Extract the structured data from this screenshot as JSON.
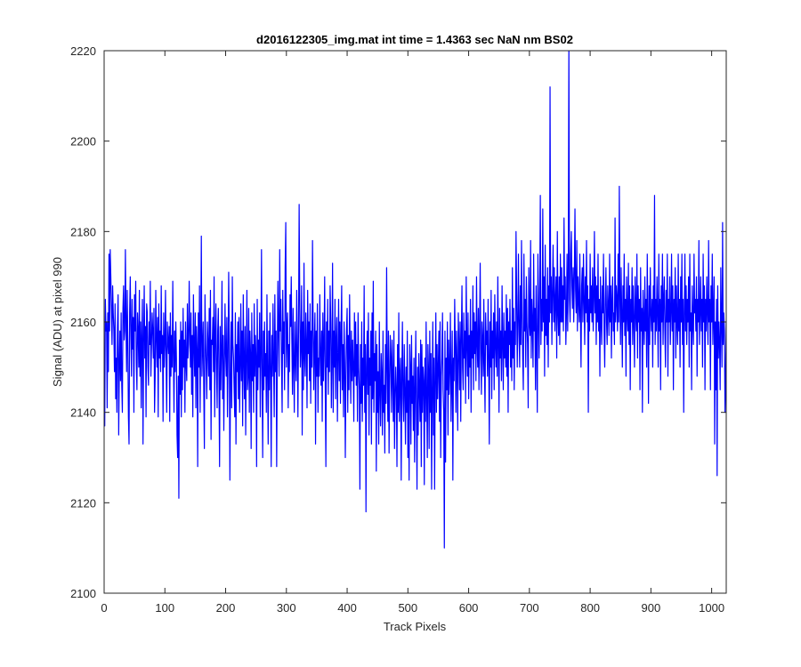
{
  "colors": {
    "series": "#0000ff",
    "axes": "#262626",
    "background": "#ffffff"
  },
  "chart_data": {
    "type": "line",
    "title": "d2016122305_img.mat int time = 1.4363 sec  NaN nm BS02",
    "xlabel": "Track Pixels",
    "ylabel": "Signal (ADU) at pixel 990",
    "xlim": [
      0,
      1024
    ],
    "ylim": [
      2100,
      2220
    ],
    "xticks": [
      0,
      100,
      200,
      300,
      400,
      500,
      600,
      700,
      800,
      900,
      1000
    ],
    "yticks": [
      2100,
      2120,
      2140,
      2160,
      2180,
      2200,
      2220
    ],
    "grid": false,
    "legend": "none",
    "series": [
      {
        "x_start": 0,
        "x_step": 1,
        "color": "#0000ff",
        "values": [
          2150,
          2137,
          2165,
          2158,
          2160,
          2141,
          2162,
          2149,
          2175,
          2158,
          2176,
          2170,
          2163,
          2155,
          2168,
          2162,
          2158,
          2149,
          2164,
          2143,
          2152,
          2140,
          2159,
          2166,
          2135,
          2150,
          2158,
          2147,
          2162,
          2146,
          2140,
          2163,
          2168,
          2156,
          2158,
          2176,
          2160,
          2149,
          2167,
          2156,
          2139,
          2133,
          2162,
          2170,
          2158,
          2148,
          2165,
          2154,
          2161,
          2140,
          2166,
          2158,
          2169,
          2151,
          2145,
          2162,
          2158,
          2150,
          2167,
          2148,
          2160,
          2141,
          2157,
          2165,
          2133,
          2156,
          2168,
          2152,
          2159,
          2139,
          2164,
          2162,
          2150,
          2146,
          2160,
          2155,
          2169,
          2148,
          2155,
          2162,
          2158,
          2152,
          2163,
          2140,
          2148,
          2167,
          2157,
          2150,
          2161,
          2139,
          2164,
          2152,
          2158,
          2149,
          2168,
          2153,
          2157,
          2138,
          2162,
          2150,
          2155,
          2167,
          2152,
          2140,
          2160,
          2156,
          2153,
          2159,
          2138,
          2162,
          2148,
          2157,
          2150,
          2169,
          2153,
          2140,
          2158,
          2149,
          2160,
          2152,
          2135,
          2130,
          2148,
          2121,
          2156,
          2144,
          2160,
          2139,
          2158,
          2145,
          2163,
          2150,
          2156,
          2140,
          2160,
          2151,
          2147,
          2164,
          2152,
          2155,
          2169,
          2158,
          2150,
          2162,
          2144,
          2157,
          2139,
          2166,
          2155,
          2148,
          2162,
          2141,
          2159,
          2154,
          2128,
          2162,
          2150,
          2168,
          2140,
          2156,
          2179,
          2148,
          2154,
          2160,
          2145,
          2132,
          2166,
          2156,
          2150,
          2143,
          2160,
          2155,
          2148,
          2163,
          2145,
          2167,
          2134,
          2156,
          2155,
          2161,
          2149,
          2170,
          2139,
          2157,
          2164,
          2150,
          2141,
          2158,
          2163,
          2147,
          2128,
          2159,
          2145,
          2154,
          2169,
          2143,
          2157,
          2136,
          2150,
          2164,
          2153,
          2148,
          2161,
          2139,
          2152,
          2171,
          2156,
          2125,
          2148,
          2160,
          2141,
          2170,
          2155,
          2152,
          2145,
          2139,
          2162,
          2133,
          2155,
          2149,
          2160,
          2143,
          2161,
          2140,
          2150,
          2164,
          2147,
          2158,
          2137,
          2166,
          2152,
          2143,
          2159,
          2135,
          2152,
          2167,
          2145,
          2148,
          2163,
          2140,
          2158,
          2153,
          2132,
          2162,
          2147,
          2155,
          2140,
          2164,
          2148,
          2157,
          2152,
          2128,
          2165,
          2145,
          2156,
          2150,
          2162,
          2139,
          2152,
          2176,
          2148,
          2130,
          2158,
          2145,
          2160,
          2148,
          2153,
          2140,
          2166,
          2149,
          2133,
          2158,
          2145,
          2162,
          2150,
          2128,
          2157,
          2148,
          2164,
          2150,
          2139,
          2166,
          2149,
          2158,
          2128,
          2152,
          2169,
          2158,
          2148,
          2176,
          2158,
          2165,
          2151,
          2140,
          2167,
          2153,
          2160,
          2145,
          2172,
          2182,
          2150,
          2158,
          2162,
          2141,
          2155,
          2149,
          2166,
          2159,
          2170,
          2156,
          2144,
          2163,
          2151,
          2140,
          2160,
          2152,
          2147,
          2167,
          2155,
          2139,
          2158,
          2186,
          2165,
          2150,
          2155,
          2168,
          2135,
          2160,
          2145,
          2173,
          2152,
          2148,
          2162,
          2155,
          2141,
          2167,
          2153,
          2160,
          2147,
          2164,
          2142,
          2158,
          2150,
          2178,
          2160,
          2145,
          2155,
          2162,
          2133,
          2158,
          2148,
          2164,
          2140,
          2152,
          2148,
          2166,
          2153,
          2146,
          2158,
          2138,
          2162,
          2147,
          2155,
          2170,
          2145,
          2128,
          2160,
          2150,
          2165,
          2144,
          2158,
          2149,
          2168,
          2160,
          2141,
          2152,
          2173,
          2140,
          2158,
          2150,
          2165,
          2143,
          2156,
          2161,
          2138,
          2152,
          2165,
          2147,
          2160,
          2142,
          2158,
          2168,
          2145,
          2155,
          2139,
          2160,
          2151,
          2130,
          2148,
          2158,
          2163,
          2140,
          2157,
          2145,
          2166,
          2153,
          2142,
          2158,
          2147,
          2156,
          2150,
          2138,
          2162,
          2148,
          2160,
          2146,
          2155,
          2138,
          2162,
          2150,
          2145,
          2123,
          2155,
          2142,
          2160,
          2138,
          2152,
          2146,
          2168,
          2140,
          2155,
          2118,
          2150,
          2158,
          2144,
          2162,
          2135,
          2152,
          2146,
          2158,
          2133,
          2162,
          2143,
          2169,
          2140,
          2153,
          2147,
          2158,
          2127,
          2155,
          2140,
          2149,
          2133,
          2160,
          2145,
          2137,
          2153,
          2148,
          2135,
          2158,
          2140,
          2146,
          2131,
          2155,
          2142,
          2172,
          2150,
          2138,
          2158,
          2131,
          2147,
          2157,
          2152,
          2140,
          2156,
          2148,
          2138,
          2158,
          2132,
          2143,
          2150,
          2145,
          2128,
          2155,
          2140,
          2162,
          2138,
          2148,
          2152,
          2125,
          2147,
          2160,
          2143,
          2138,
          2155,
          2145,
          2133,
          2150,
          2140,
          2158,
          2130,
          2147,
          2125,
          2155,
          2150,
          2133,
          2157,
          2142,
          2148,
          2136,
          2152,
          2129,
          2145,
          2158,
          2140,
          2123,
          2150,
          2135,
          2153,
          2145,
          2138,
          2156,
          2128,
          2155,
          2140,
          2150,
          2147,
          2124,
          2152,
          2138,
          2160,
          2143,
          2130,
          2155,
          2149,
          2132,
          2158,
          2140,
          2153,
          2123,
          2145,
          2160,
          2135,
          2152,
          2123,
          2148,
          2162,
          2140,
          2155,
          2143,
          2150,
          2158,
          2138,
          2160,
          2130,
          2148,
          2152,
          2162,
          2145,
          2140,
          2110,
          2158,
          2129,
          2152,
          2145,
          2160,
          2135,
          2156,
          2144,
          2150,
          2162,
          2138,
          2148,
          2158,
          2125,
          2152,
          2147,
          2165,
          2155,
          2140,
          2158,
          2150,
          2136,
          2162,
          2155,
          2145,
          2160,
          2138,
          2157,
          2168,
          2150,
          2145,
          2162,
          2152,
          2158,
          2142,
          2170,
          2155,
          2148,
          2162,
          2143,
          2157,
          2150,
          2165,
          2140,
          2158,
          2152,
          2168,
          2145,
          2162,
          2153,
          2160,
          2147,
          2170,
          2155,
          2150,
          2163,
          2145,
          2158,
          2173,
          2152,
          2144,
          2160,
          2156,
          2148,
          2165,
          2150,
          2140,
          2162,
          2155,
          2158,
          2148,
          2165,
          2152,
          2133,
          2160,
          2150,
          2167,
          2143,
          2158,
          2152,
          2162,
          2145,
          2166,
          2155,
          2150,
          2160,
          2148,
          2170,
          2155,
          2140,
          2163,
          2152,
          2158,
          2147,
          2168,
          2155,
          2145,
          2162,
          2152,
          2158,
          2150,
          2166,
          2148,
          2163,
          2140,
          2160,
          2155,
          2165,
          2150,
          2158,
          2147,
          2172,
          2152,
          2163,
          2145,
          2160,
          2155,
          2180,
          2166,
          2150,
          2160,
          2175,
          2157,
          2150,
          2168,
          2155,
          2178,
          2162,
          2152,
          2145,
          2175,
          2158,
          2165,
          2150,
          2170,
          2160,
          2155,
          2141,
          2172,
          2160,
          2157,
          2178,
          2152,
          2165,
          2160,
          2150,
          2175,
          2158,
          2163,
          2145,
          2168,
          2155,
          2140,
          2175,
          2162,
          2152,
          2168,
          2188,
          2155,
          2165,
          2158,
          2185,
          2160,
          2170,
          2148,
          2177,
          2157,
          2165,
          2155,
          2172,
          2150,
          2168,
          2160,
          2212,
          2162,
          2170,
          2155,
          2167,
          2177,
          2160,
          2172,
          2158,
          2165,
          2170,
          2152,
          2180,
          2162,
          2157,
          2170,
          2155,
          2175,
          2160,
          2172,
          2160,
          2168,
          2158,
          2183,
          2165,
          2170,
          2155,
          2162,
          2175,
          2158,
          2170,
          2222,
          2165,
          2160,
          2175,
          2180,
          2168,
          2163,
          2172,
          2160,
          2170,
          2185,
          2167,
          2162,
          2178,
          2158,
          2170,
          2165,
          2160,
          2175,
          2162,
          2150,
          2168,
          2172,
          2160,
          2175,
          2165,
          2155,
          2170,
          2162,
          2178,
          2160,
          2168,
          2140,
          2165,
          2158,
          2175,
          2162,
          2168,
          2160,
          2172,
          2158,
          2165,
          2180,
          2162,
          2170,
          2155,
          2168,
          2160,
          2175,
          2158,
          2165,
          2148,
          2170,
          2160,
          2155,
          2168,
          2162,
          2175,
          2158,
          2150,
          2165,
          2172,
          2160,
          2155,
          2168,
          2163,
          2157,
          2175,
          2160,
          2168,
          2152,
          2165,
          2170,
          2158,
          2162,
          2155,
          2183,
          2160,
          2168,
          2165,
          2158,
          2175,
          2160,
          2190,
          2165,
          2155,
          2172,
          2162,
          2150,
          2168,
          2160,
          2175,
          2157,
          2165,
          2148,
          2170,
          2162,
          2158,
          2173,
          2155,
          2168,
          2145,
          2165,
          2160,
          2172,
          2155,
          2168,
          2160,
          2150,
          2170,
          2162,
          2158,
          2175,
          2152,
          2168,
          2160,
          2165,
          2145,
          2172,
          2158,
          2163,
          2140,
          2167,
          2160,
          2155,
          2170,
          2158,
          2165,
          2150,
          2175,
          2160,
          2142,
          2168,
          2155,
          2172,
          2162,
          2158,
          2165,
          2150,
          2168,
          2160,
          2188,
          2155,
          2165,
          2158,
          2170,
          2162,
          2150,
          2175,
          2158,
          2165,
          2145,
          2168,
          2160,
          2175,
          2155,
          2165,
          2170,
          2158,
          2150,
          2167,
          2160,
          2175,
          2148,
          2165,
          2160,
          2170,
          2155,
          2162,
          2175,
          2158,
          2168,
          2145,
          2165,
          2160,
          2172,
          2152,
          2168,
          2160,
          2155,
          2175,
          2158,
          2165,
          2150,
          2170,
          2160,
          2175,
          2155,
          2165,
          2140,
          2162,
          2175,
          2158,
          2168,
          2155,
          2165,
          2160,
          2170,
          2150,
          2175,
          2158,
          2162,
          2145,
          2168,
          2160,
          2155,
          2175,
          2162,
          2165,
          2158,
          2170,
          2148,
          2165,
          2160,
          2178,
          2155,
          2162,
          2170,
          2158,
          2165,
          2150,
          2175,
          2160,
          2168,
          2145,
          2165,
          2158,
          2170,
          2162,
          2155,
          2178,
          2160,
          2165,
          2145,
          2168,
          2160,
          2175,
          2155,
          2162,
          2170,
          2133,
          2160,
          2145,
          2165,
          2126,
          2168,
          2152,
          2160,
          2155,
          2145,
          2172,
          2160,
          2150,
          2182,
          2155,
          2162,
          2158,
          2140,
          2148,
          2160,
          2152,
          2155,
          2138,
          2150,
          2158,
          2162,
          2150,
          2155,
          2144,
          2160,
          2148,
          2152,
          2157,
          2165,
          2150,
          2155,
          2162,
          2148,
          2158,
          2144,
          2152
        ]
      }
    ]
  }
}
